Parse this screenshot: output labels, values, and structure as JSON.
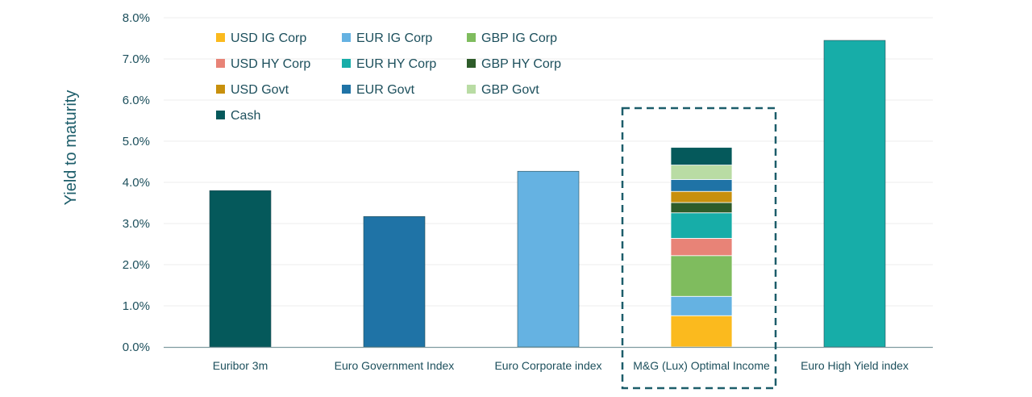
{
  "chart_data": {
    "type": "bar",
    "stacked_category": "M&G (Lux) Optimal Income",
    "ylabel": "Yield to maturity",
    "xlabel": "",
    "ylim": [
      0,
      8
    ],
    "y_ticks": [
      "0.0%",
      "1.0%",
      "2.0%",
      "3.0%",
      "4.0%",
      "5.0%",
      "6.0%",
      "7.0%",
      "8.0%"
    ],
    "grid": true,
    "legend_position": "top-left",
    "categories": [
      "Euribor 3m",
      "Euro Government Index",
      "Euro Corporate index",
      "M&G (Lux) Optimal Income",
      "Euro High Yield  index"
    ],
    "single_bars": [
      {
        "category": "Euribor 3m",
        "value": 3.8,
        "color": "#05595b"
      },
      {
        "category": "Euro Government Index",
        "value": 3.17,
        "color": "#1f73a6"
      },
      {
        "category": "Euro Corporate index",
        "value": 4.27,
        "color": "#65b2e2"
      },
      {
        "category": "Euro High Yield  index",
        "value": 7.45,
        "color": "#17ada8"
      }
    ],
    "series": [
      {
        "name": "USD IG Corp",
        "color": "#fbba1e",
        "value": 0.76
      },
      {
        "name": "EUR IG Corp",
        "color": "#65b2e2",
        "value": 0.47
      },
      {
        "name": "GBP IG Corp",
        "color": "#7fbc5e",
        "value": 0.99
      },
      {
        "name": "USD HY Corp",
        "color": "#e88377",
        "value": 0.42
      },
      {
        "name": "EUR HY Corp",
        "color": "#17ada8",
        "value": 0.62
      },
      {
        "name": "GBP HY Corp",
        "color": "#2e5c2a",
        "value": 0.25
      },
      {
        "name": "USD Govt",
        "color": "#c8900d",
        "value": 0.27
      },
      {
        "name": "EUR Govt",
        "color": "#1f73a6",
        "value": 0.29
      },
      {
        "name": "GBP Govt",
        "color": "#b9dca4",
        "value": 0.35
      },
      {
        "name": "Cash",
        "color": "#05595b",
        "value": 0.43
      }
    ]
  }
}
